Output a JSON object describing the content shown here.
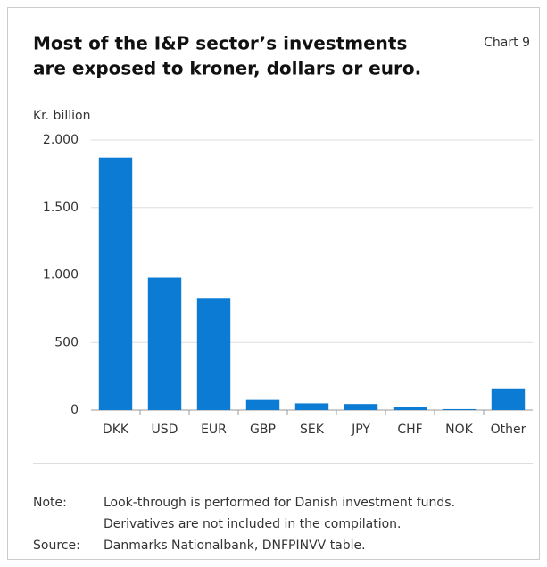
{
  "chart_data": {
    "type": "bar",
    "title": [
      "Most of the I&P sector’s investments",
      "are exposed to kroner, dollars or euro."
    ],
    "chart_number": "Chart 9",
    "y_label": "Kr. billion",
    "categories": [
      "DKK",
      "USD",
      "EUR",
      "GBP",
      "SEK",
      "JPY",
      "CHF",
      "NOK",
      "Other"
    ],
    "values": [
      1870,
      980,
      830,
      75,
      50,
      45,
      20,
      7,
      160
    ],
    "color": "#0b7bd4",
    "ylim": [
      0,
      2000
    ],
    "yticks": [
      0,
      500,
      {
        "value": 1000,
        "label": "1.000"
      },
      {
        "value": 1500,
        "label": "1.500"
      },
      {
        "value": 2000,
        "label": "2.000"
      }
    ],
    "grid": true,
    "note_label": "Note:",
    "note": [
      "Look-through is performed for Danish investment funds.",
      "Derivatives are not included in the compilation."
    ],
    "source_label": "Source:",
    "source": "Danmarks Nationalbank, DNFPINVV table."
  }
}
